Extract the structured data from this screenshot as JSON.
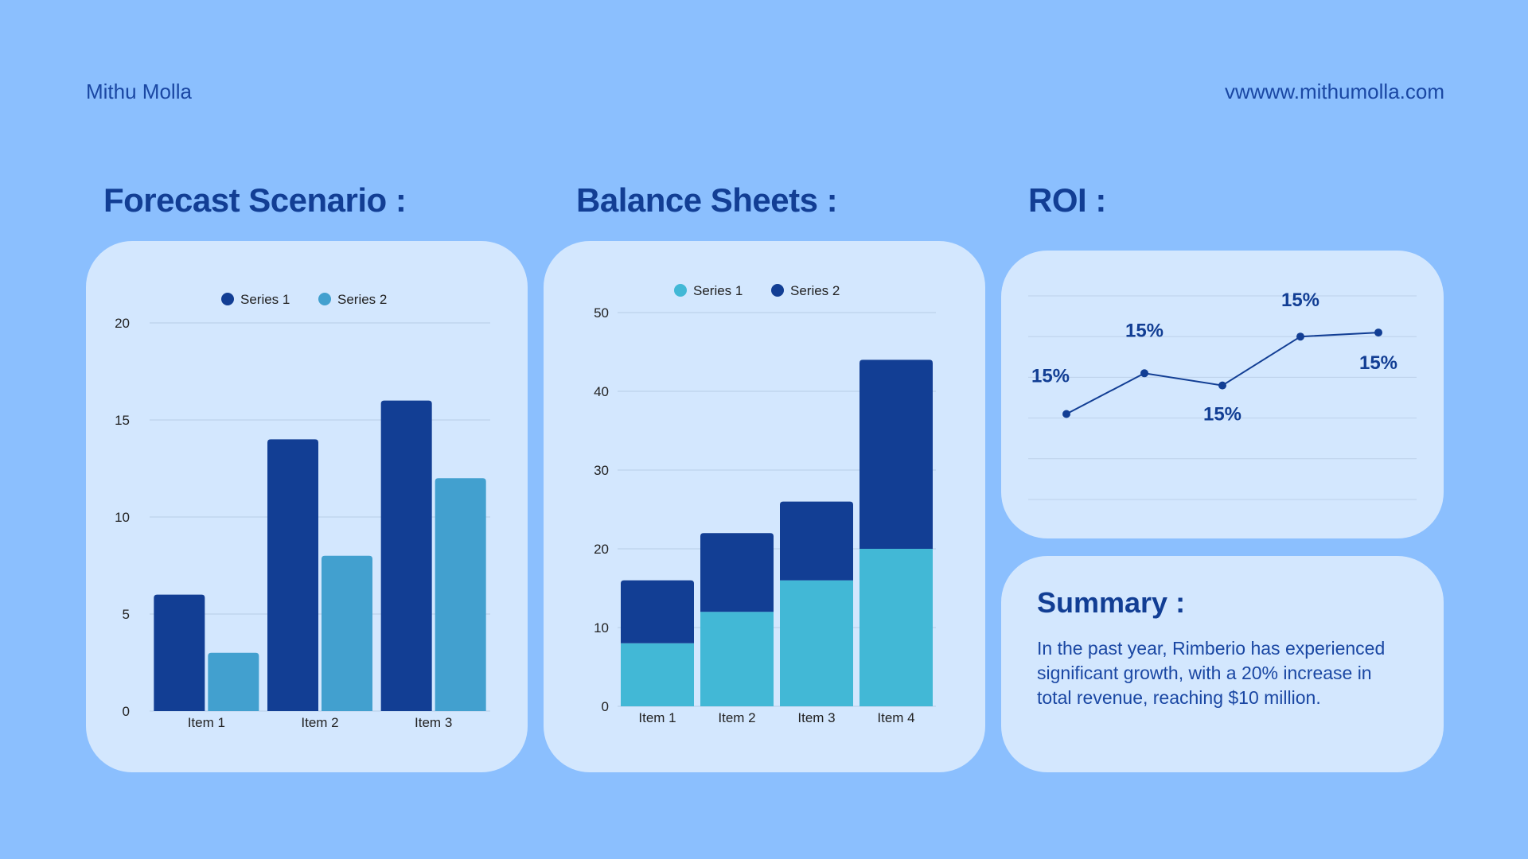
{
  "header": {
    "brand": "Mithu Molla",
    "website": "vwwww.mithumolla.com"
  },
  "sections": {
    "forecast_title": "Forecast Scenario :",
    "balance_title": "Balance Sheets :",
    "roi_title": "ROI :",
    "summary_title": "Summary :",
    "summary_text": "In the past year, Rimberio has experienced significant growth, with a 20% increase in total revenue, reaching $10 million."
  },
  "colors": {
    "background": "#8bbffe",
    "card": "#d3e7fe",
    "dark_blue": "#123e94",
    "mid_blue": "#42a0cf",
    "light_blue": "#42b8d6"
  },
  "chart_data": [
    {
      "id": "forecast",
      "type": "bar",
      "categories": [
        "Item 1",
        "Item 2",
        "Item 3"
      ],
      "series": [
        {
          "name": "Series 1",
          "values": [
            6,
            14,
            16
          ],
          "color": "#123e94"
        },
        {
          "name": "Series 2",
          "values": [
            3,
            8,
            12
          ],
          "color": "#42a0cf"
        }
      ],
      "ylim": [
        0,
        20
      ],
      "yticks": [
        0,
        5,
        10,
        15,
        20
      ],
      "grid": true,
      "legend": "top-center"
    },
    {
      "id": "balance",
      "type": "bar",
      "stacked": true,
      "categories": [
        "Item 1",
        "Item 2",
        "Item 3",
        "Item 4"
      ],
      "series": [
        {
          "name": "Series 1",
          "values": [
            8,
            12,
            16,
            20
          ],
          "color": "#42b8d6"
        },
        {
          "name": "Series 2",
          "values": [
            8,
            10,
            10,
            24
          ],
          "color": "#123e94"
        }
      ],
      "ylim": [
        0,
        50
      ],
      "yticks": [
        0,
        10,
        20,
        30,
        40,
        50
      ],
      "grid": true,
      "legend": "top-center"
    },
    {
      "id": "roi",
      "type": "line",
      "x": [
        1,
        2,
        3,
        4,
        5
      ],
      "values": [
        2.1,
        3.1,
        2.8,
        4.0,
        4.1
      ],
      "labels": [
        "15%",
        "15%",
        "15%",
        "15%",
        "15%"
      ],
      "ylim": [
        0,
        5
      ],
      "grid": true,
      "color": "#123e94"
    }
  ]
}
